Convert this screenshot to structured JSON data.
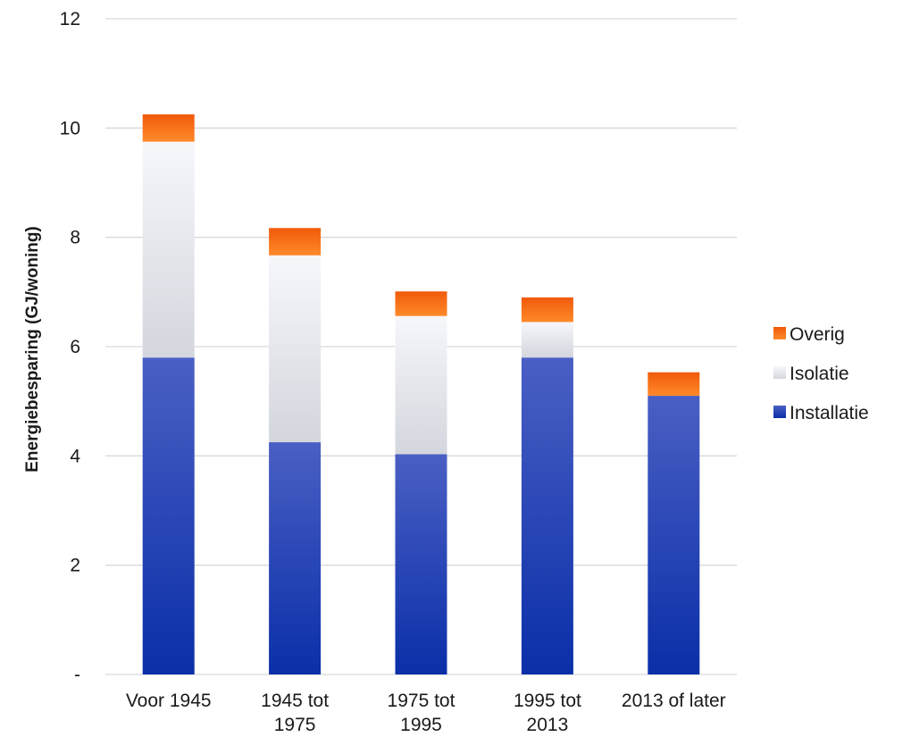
{
  "chart_data": {
    "type": "bar",
    "stacked": true,
    "categories": [
      [
        "Voor 1945"
      ],
      [
        "1945 tot",
        "1975"
      ],
      [
        "1975 tot",
        "1995"
      ],
      [
        "1995 tot",
        "2013"
      ],
      [
        "2013 of later"
      ]
    ],
    "series": [
      {
        "name": "Installatie",
        "values": [
          5.8,
          4.25,
          4.03,
          5.8,
          5.1
        ],
        "color_top": "#4a5fc4",
        "color_bottom": "#0a2fa8"
      },
      {
        "name": "Isolatie",
        "values": [
          3.95,
          3.42,
          2.53,
          0.65,
          0.0
        ],
        "color_top": "#f6f7fb",
        "color_bottom": "#d3d6dd"
      },
      {
        "name": "Overig",
        "values": [
          0.5,
          0.5,
          0.45,
          0.45,
          0.43
        ],
        "color_top": "#f05a0a",
        "color_bottom": "#ff8a2a"
      }
    ],
    "legend_order": [
      "Overig",
      "Isolatie",
      "Installatie"
    ],
    "ylabel": "Energiebesparing (GJ/woning)",
    "xlabel": "",
    "ylim": [
      0,
      12
    ],
    "yticks": [
      0,
      2,
      4,
      6,
      8,
      10,
      12
    ],
    "ytick_labels": [
      "-",
      "2",
      "4",
      "6",
      "8",
      "10",
      "12"
    ],
    "grid": true,
    "grid_color": "#d9d9d9",
    "legend_position": "right"
  }
}
